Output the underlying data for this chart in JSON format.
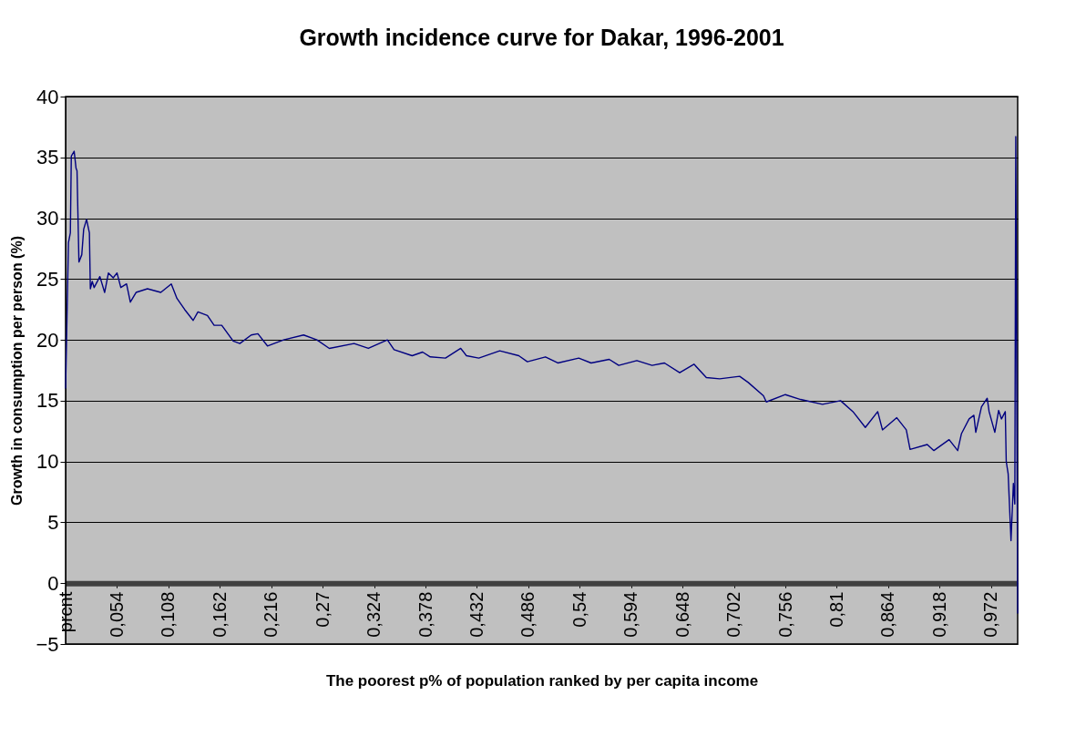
{
  "chart_data": {
    "type": "line",
    "title": "Growth incidence curve for Dakar, 1996-2001",
    "xlabel": "The poorest p% of population ranked by per capita income",
    "ylabel": "Growth in consumption per person (%)",
    "x": [
      0,
      0.003,
      0.005,
      0.006,
      0.009,
      0.011,
      0.012,
      0.014,
      0.017,
      0.019,
      0.022,
      0.025,
      0.026,
      0.028,
      0.03,
      0.036,
      0.041,
      0.045,
      0.05,
      0.054,
      0.058,
      0.064,
      0.068,
      0.074,
      0.086,
      0.1,
      0.111,
      0.117,
      0.125,
      0.134,
      0.139,
      0.149,
      0.156,
      0.164,
      0.176,
      0.183,
      0.195,
      0.202,
      0.212,
      0.229,
      0.25,
      0.264,
      0.277,
      0.303,
      0.318,
      0.338,
      0.345,
      0.364,
      0.375,
      0.383,
      0.399,
      0.415,
      0.421,
      0.434,
      0.456,
      0.476,
      0.485,
      0.504,
      0.517,
      0.539,
      0.552,
      0.571,
      0.581,
      0.6,
      0.616,
      0.629,
      0.645,
      0.66,
      0.673,
      0.687,
      0.708,
      0.717,
      0.733,
      0.736,
      0.756,
      0.772,
      0.795,
      0.814,
      0.827,
      0.84,
      0.853,
      0.858,
      0.873,
      0.883,
      0.887,
      0.905,
      0.912,
      0.928,
      0.937,
      0.941,
      0.949,
      0.954,
      0.956,
      0.962,
      0.968,
      0.97,
      0.976,
      0.98,
      0.983,
      0.987,
      0.988,
      0.99,
      0.993,
      0.9955,
      0.997,
      0.998,
      1.0
    ],
    "series": [
      {
        "color": "#000080",
        "values": [
          16.0,
          28.0,
          28.8,
          35.1,
          35.5,
          34.1,
          33.9,
          26.4,
          27.0,
          29.1,
          29.9,
          28.8,
          24.2,
          24.8,
          24.3,
          25.2,
          23.9,
          25.5,
          25.1,
          25.5,
          24.3,
          24.6,
          23.1,
          23.9,
          24.2,
          23.9,
          24.6,
          23.4,
          22.5,
          21.6,
          22.3,
          22.0,
          21.2,
          21.2,
          19.9,
          19.7,
          20.4,
          20.5,
          19.5,
          20.0,
          20.4,
          20.0,
          19.3,
          19.7,
          19.3,
          20.0,
          19.2,
          18.7,
          19.0,
          18.6,
          18.5,
          19.3,
          18.7,
          18.5,
          19.1,
          18.7,
          18.2,
          18.6,
          18.1,
          18.5,
          18.1,
          18.4,
          17.9,
          18.3,
          17.9,
          18.1,
          17.3,
          18.0,
          16.9,
          16.8,
          17.0,
          16.5,
          15.4,
          14.9,
          15.5,
          15.1,
          14.7,
          15.0,
          14.1,
          12.8,
          14.1,
          12.6,
          13.6,
          12.6,
          11.0,
          11.4,
          10.9,
          11.8,
          10.9,
          12.3,
          13.5,
          13.8,
          12.4,
          14.5,
          15.2,
          14.1,
          12.4,
          14.2,
          13.5,
          14.1,
          10.0,
          9.0,
          3.5,
          8.2,
          6.5,
          36.7,
          -2.5
        ]
      }
    ],
    "xlim": [
      0,
      1
    ],
    "xticks": [
      {
        "value": 0,
        "label": "prcnt"
      },
      {
        "value": 0.054,
        "label": "0,054"
      },
      {
        "value": 0.108,
        "label": "0,108"
      },
      {
        "value": 0.162,
        "label": "0,162"
      },
      {
        "value": 0.216,
        "label": "0,216"
      },
      {
        "value": 0.27,
        "label": "0,27"
      },
      {
        "value": 0.324,
        "label": "0,324"
      },
      {
        "value": 0.378,
        "label": "0,378"
      },
      {
        "value": 0.432,
        "label": "0,432"
      },
      {
        "value": 0.486,
        "label": "0,486"
      },
      {
        "value": 0.54,
        "label": "0,54"
      },
      {
        "value": 0.594,
        "label": "0,594"
      },
      {
        "value": 0.648,
        "label": "0,648"
      },
      {
        "value": 0.702,
        "label": "0,702"
      },
      {
        "value": 0.756,
        "label": "0,756"
      },
      {
        "value": 0.81,
        "label": "0,81"
      },
      {
        "value": 0.864,
        "label": "0,864"
      },
      {
        "value": 0.918,
        "label": "0,918"
      },
      {
        "value": 0.972,
        "label": "0,972"
      }
    ],
    "ylim": [
      -5,
      40
    ],
    "yticks": [
      -5,
      0,
      5,
      10,
      15,
      20,
      25,
      30,
      35,
      40
    ],
    "grid": "y"
  }
}
